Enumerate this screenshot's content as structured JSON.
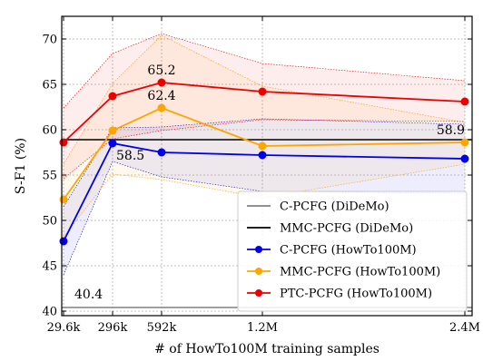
{
  "chart_data": {
    "type": "line",
    "xlabel": "# of HowTo100M training samples",
    "ylabel": "S-F1 (%)",
    "ylim": [
      39.5,
      72.5
    ],
    "x_ticks": [
      "29.6k",
      "296k",
      "592k",
      "1.2M",
      "2.4M"
    ],
    "y_ticks": [
      40,
      45,
      50,
      55,
      60,
      65,
      70
    ],
    "grid": true,
    "legend_position": "lower-right",
    "reference_lines": [
      {
        "name": "C-PCFG (DiDeMo)",
        "value": 40.4,
        "label": "40.4",
        "color": "#808080"
      },
      {
        "name": "MMC-PCFG (DiDeMo)",
        "value": 58.9,
        "label": "58.9",
        "color": "#000000"
      }
    ],
    "series": [
      {
        "name": "C-PCFG (HowTo100M)",
        "color": "#0000ee",
        "values": [
          47.7,
          58.5,
          57.5,
          57.2,
          56.8
        ],
        "lower": [
          44.0,
          56.5,
          54.8,
          53.2,
          53.0
        ],
        "upper": [
          51.5,
          60.2,
          60.3,
          61.2,
          60.6
        ],
        "annotations": [
          {
            "index": 1,
            "label": "58.5"
          }
        ]
      },
      {
        "name": "MMC-PCFG (HowTo100M)",
        "color": "#ffa500",
        "values": [
          52.3,
          59.9,
          62.4,
          58.2,
          58.6
        ],
        "lower": [
          48.2,
          55.1,
          54.5,
          52.5,
          56.2
        ],
        "upper": [
          56.2,
          65.1,
          70.4,
          64.8,
          60.8
        ],
        "annotations": [
          {
            "index": 2,
            "label": "62.4"
          }
        ]
      },
      {
        "name": "PTC-PCFG (HowTo100M)",
        "color": "#ee0000",
        "values": [
          58.6,
          63.7,
          65.2,
          64.2,
          63.1
        ],
        "lower": [
          54.6,
          59.0,
          59.9,
          61.1,
          60.9
        ],
        "upper": [
          62.4,
          68.4,
          70.6,
          67.3,
          65.4
        ],
        "annotations": [
          {
            "index": 2,
            "label": "65.2"
          }
        ]
      }
    ]
  }
}
